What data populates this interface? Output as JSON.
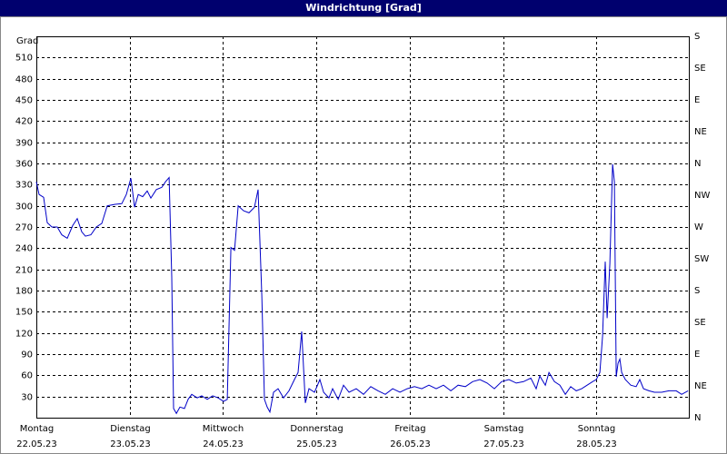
{
  "chart_data": {
    "type": "line",
    "title": "Windrichtung [Grad]",
    "ylabel": "Grad",
    "xlim": [
      0,
      7
    ],
    "ylim": [
      0,
      540
    ],
    "y2lim": [
      0,
      540
    ],
    "grid": true,
    "xticks": [
      {
        "value": 0,
        "label": "Montag"
      },
      {
        "value": 1,
        "label": "Dienstag"
      },
      {
        "value": 2,
        "label": "Mittwoch"
      },
      {
        "value": 3,
        "label": "Donnerstag"
      },
      {
        "value": 4,
        "label": "Freitag"
      },
      {
        "value": 5,
        "label": "Samstag"
      },
      {
        "value": 6,
        "label": "Sonntag"
      }
    ],
    "xtick_dates": [
      "22.05.23",
      "23.05.23",
      "24.05.23",
      "25.05.23",
      "26.05.23",
      "27.05.23",
      "28.05.23"
    ],
    "yticks": [
      30,
      60,
      90,
      120,
      150,
      180,
      210,
      240,
      270,
      300,
      330,
      360,
      390,
      420,
      450,
      480,
      510
    ],
    "y2ticks": [
      {
        "value": 0,
        "label": "N"
      },
      {
        "value": 45,
        "label": "NE"
      },
      {
        "value": 90,
        "label": "E"
      },
      {
        "value": 135,
        "label": "SE"
      },
      {
        "value": 180,
        "label": "S"
      },
      {
        "value": 225,
        "label": "SW"
      },
      {
        "value": 270,
        "label": "W"
      },
      {
        "value": 315,
        "label": "NW"
      },
      {
        "value": 360,
        "label": "N"
      },
      {
        "value": 405,
        "label": "NE"
      },
      {
        "value": 450,
        "label": "E"
      },
      {
        "value": 495,
        "label": "SE"
      },
      {
        "value": 540,
        "label": "S"
      }
    ],
    "series": [
      {
        "color": "#0000c8",
        "x": [
          0,
          0.029,
          0.078,
          0.117,
          0.166,
          0.224,
          0.273,
          0.331,
          0.389,
          0.438,
          0.487,
          0.526,
          0.584,
          0.643,
          0.701,
          0.759,
          0.837,
          0.915,
          0.964,
          1.013,
          1.052,
          1.091,
          1.139,
          1.188,
          1.227,
          1.285,
          1.344,
          1.383,
          1.422,
          1.451,
          1.47,
          1.5,
          1.538,
          1.587,
          1.626,
          1.665,
          1.723,
          1.772,
          1.831,
          1.889,
          1.947,
          2.006,
          2.045,
          2.084,
          2.123,
          2.162,
          2.22,
          2.278,
          2.337,
          2.376,
          2.415,
          2.444,
          2.473,
          2.502,
          2.541,
          2.59,
          2.648,
          2.707,
          2.765,
          2.804,
          2.843,
          2.882,
          2.921,
          2.98,
          3.038,
          3.077,
          3.135,
          3.174,
          3.233,
          3.291,
          3.35,
          3.427,
          3.505,
          3.583,
          3.661,
          3.739,
          3.817,
          3.895,
          3.973,
          4.051,
          4.129,
          4.206,
          4.284,
          4.362,
          4.44,
          4.518,
          4.596,
          4.674,
          4.752,
          4.83,
          4.907,
          4.985,
          5.063,
          5.141,
          5.219,
          5.297,
          5.355,
          5.394,
          5.453,
          5.492,
          5.55,
          5.609,
          5.667,
          5.725,
          5.784,
          5.842,
          5.901,
          5.959,
          5.998,
          6.037,
          6.066,
          6.095,
          6.115,
          6.144,
          6.173,
          6.193,
          6.212,
          6.232,
          6.251,
          6.271,
          6.31,
          6.368,
          6.426,
          6.465,
          6.504,
          6.563,
          6.621,
          6.699,
          6.777,
          6.855,
          6.913,
          6.982
        ],
        "values": [
          334,
          316,
          312,
          276,
          270,
          270,
          259,
          254,
          272,
          282,
          263,
          257,
          259,
          270,
          275,
          300,
          302,
          303,
          316,
          339,
          298,
          316,
          313,
          321,
          311,
          323,
          326,
          334,
          340,
          199,
          13,
          6,
          15,
          13,
          26,
          33,
          28,
          31,
          26,
          31,
          28,
          23,
          26,
          241,
          237,
          300,
          293,
          290,
          298,
          323,
          173,
          26,
          15,
          8,
          36,
          41,
          28,
          38,
          54,
          64,
          122,
          21,
          41,
          36,
          54,
          36,
          28,
          41,
          26,
          46,
          36,
          41,
          33,
          44,
          38,
          33,
          41,
          36,
          41,
          44,
          41,
          46,
          41,
          46,
          38,
          46,
          44,
          51,
          54,
          49,
          41,
          51,
          54,
          49,
          51,
          56,
          41,
          59,
          46,
          64,
          51,
          46,
          33,
          44,
          38,
          41,
          46,
          51,
          54,
          64,
          116,
          221,
          141,
          218,
          359,
          334,
          58,
          77,
          83,
          64,
          54,
          46,
          44,
          54,
          41,
          38,
          36,
          36,
          38,
          38,
          33,
          38
        ]
      }
    ]
  }
}
